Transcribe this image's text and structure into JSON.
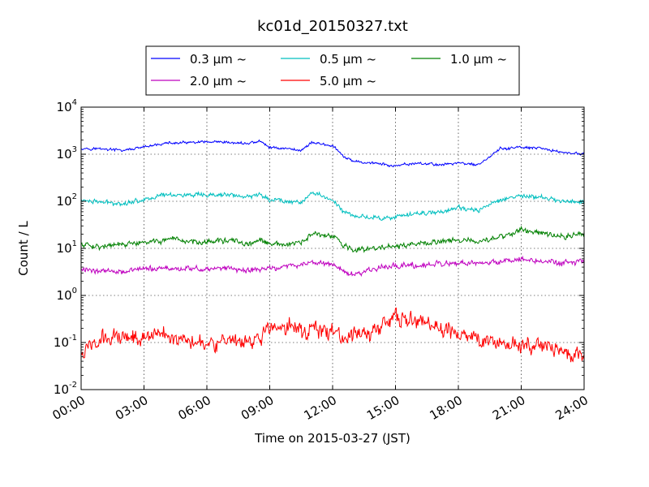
{
  "chart_data": {
    "type": "line",
    "title": "kc01d_20150327.txt",
    "xlabel": "Time on 2015-03-27 (JST)",
    "ylabel": "Count / L",
    "x_ticks": [
      "00:00",
      "03:00",
      "06:00",
      "09:00",
      "12:00",
      "15:00",
      "18:00",
      "21:00",
      "24:00"
    ],
    "xlim": [
      "00:00",
      "24:00"
    ],
    "y_scale": "log",
    "ylim": [
      0.01,
      10000
    ],
    "y_ticks": [
      {
        "base": "10",
        "exp": "-2",
        "value": 0.01
      },
      {
        "base": "10",
        "exp": "-1",
        "value": 0.1
      },
      {
        "base": "10",
        "exp": "0",
        "value": 1
      },
      {
        "base": "10",
        "exp": "1",
        "value": 10
      },
      {
        "base": "10",
        "exp": "2",
        "value": 100
      },
      {
        "base": "10",
        "exp": "3",
        "value": 1000
      },
      {
        "base": "10",
        "exp": "4",
        "value": 10000
      }
    ],
    "grid": true,
    "legend_position": "top-center",
    "series": [
      {
        "name": "0.3 μm ~",
        "color": "#0000ff",
        "noise": 0.03,
        "x": [
          "00:00",
          "01:00",
          "02:00",
          "03:00",
          "04:00",
          "05:00",
          "06:00",
          "07:00",
          "08:00",
          "08:30",
          "09:00",
          "10:00",
          "10:30",
          "11:00",
          "12:00",
          "12:30",
          "13:00",
          "14:00",
          "15:00",
          "16:00",
          "17:00",
          "18:00",
          "19:00",
          "20:00",
          "21:00",
          "22:00",
          "23:00",
          "24:00"
        ],
        "values": [
          1350,
          1300,
          1200,
          1400,
          1700,
          1750,
          1800,
          1750,
          1700,
          1900,
          1400,
          1300,
          1200,
          1800,
          1500,
          900,
          700,
          650,
          550,
          650,
          600,
          650,
          600,
          1300,
          1400,
          1300,
          1100,
          1000
        ]
      },
      {
        "name": "0.5 μm ~",
        "color": "#00bfbf",
        "noise": 0.05,
        "x": [
          "00:00",
          "01:00",
          "02:00",
          "03:00",
          "04:00",
          "05:00",
          "06:00",
          "07:00",
          "08:00",
          "08:30",
          "09:00",
          "10:00",
          "10:30",
          "11:00",
          "12:00",
          "12:30",
          "13:00",
          "14:00",
          "15:00",
          "16:00",
          "17:00",
          "18:00",
          "19:00",
          "20:00",
          "21:00",
          "22:00",
          "23:00",
          "24:00"
        ],
        "values": [
          105,
          95,
          90,
          110,
          140,
          135,
          130,
          140,
          120,
          145,
          110,
          100,
          95,
          150,
          110,
          60,
          50,
          45,
          45,
          55,
          60,
          70,
          65,
          110,
          130,
          120,
          100,
          100
        ]
      },
      {
        "name": "1.0 μm ~",
        "color": "#008000",
        "noise": 0.06,
        "x": [
          "00:00",
          "01:00",
          "02:00",
          "03:00",
          "04:00",
          "05:00",
          "06:00",
          "07:00",
          "08:00",
          "08:30",
          "09:00",
          "10:00",
          "10:30",
          "11:00",
          "12:00",
          "12:30",
          "13:00",
          "14:00",
          "15:00",
          "16:00",
          "17:00",
          "18:00",
          "19:00",
          "20:00",
          "21:00",
          "22:00",
          "23:00",
          "24:00"
        ],
        "values": [
          12,
          11,
          12,
          13,
          15,
          14,
          14,
          15,
          12,
          15,
          12,
          12,
          13,
          20,
          18,
          12,
          9,
          10,
          11,
          12,
          14,
          16,
          13,
          18,
          24,
          22,
          18,
          20
        ]
      },
      {
        "name": "2.0 μm ~",
        "color": "#bf00bf",
        "noise": 0.06,
        "x": [
          "00:00",
          "01:00",
          "02:00",
          "03:00",
          "04:00",
          "05:00",
          "06:00",
          "07:00",
          "08:00",
          "08:30",
          "09:00",
          "10:00",
          "10:30",
          "11:00",
          "12:00",
          "12:30",
          "13:00",
          "14:00",
          "15:00",
          "16:00",
          "17:00",
          "18:00",
          "19:00",
          "20:00",
          "21:00",
          "22:00",
          "23:00",
          "24:00"
        ],
        "values": [
          3.5,
          3.4,
          3.3,
          3.6,
          3.8,
          3.7,
          3.6,
          3.8,
          3.3,
          3.6,
          3.8,
          4.2,
          4.5,
          5.2,
          4.6,
          3.3,
          2.8,
          3.6,
          4.5,
          4.3,
          4.5,
          4.8,
          4.6,
          5.2,
          6.0,
          5.4,
          4.8,
          5.2
        ]
      },
      {
        "name": "5.0 μm ~",
        "color": "#ff0000",
        "noise": 0.17,
        "x": [
          "00:00",
          "01:00",
          "02:00",
          "03:00",
          "04:00",
          "05:00",
          "06:00",
          "07:00",
          "08:00",
          "08:30",
          "09:00",
          "10:00",
          "10:30",
          "11:00",
          "12:00",
          "12:30",
          "13:00",
          "14:00",
          "15:00",
          "16:00",
          "17:00",
          "18:00",
          "19:00",
          "20:00",
          "21:00",
          "22:00",
          "23:00",
          "24:00"
        ],
        "values": [
          0.06,
          0.12,
          0.14,
          0.14,
          0.15,
          0.12,
          0.11,
          0.09,
          0.1,
          0.13,
          0.2,
          0.22,
          0.18,
          0.2,
          0.17,
          0.12,
          0.14,
          0.18,
          0.35,
          0.28,
          0.2,
          0.15,
          0.12,
          0.1,
          0.09,
          0.08,
          0.06,
          0.05
        ]
      }
    ]
  }
}
